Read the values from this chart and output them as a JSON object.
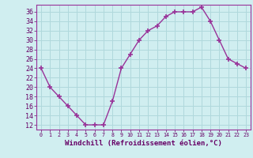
{
  "x": [
    0,
    1,
    2,
    3,
    4,
    5,
    6,
    7,
    8,
    9,
    10,
    11,
    12,
    13,
    14,
    15,
    16,
    17,
    18,
    19,
    20,
    21,
    22,
    23
  ],
  "y": [
    24,
    20,
    18,
    16,
    14,
    12,
    12,
    12,
    17,
    24,
    27,
    30,
    32,
    33,
    35,
    36,
    36,
    36,
    37,
    34,
    30,
    26,
    25,
    24
  ],
  "line_color": "#993399",
  "marker": "+",
  "marker_size": 4,
  "marker_linewidth": 1.2,
  "line_width": 1.0,
  "xlabel": "Windchill (Refroidissement éolien,°C)",
  "xlabel_fontsize": 6.5,
  "ylabel_ticks": [
    12,
    14,
    16,
    18,
    20,
    22,
    24,
    26,
    28,
    30,
    32,
    34,
    36
  ],
  "ytick_fontsize": 6,
  "xtick_fontsize": 4.8,
  "xlim": [
    -0.5,
    23.5
  ],
  "ylim": [
    11,
    37.5
  ],
  "bg_color": "#d0eef0",
  "grid_color": "#b0d8dc",
  "spine_color": "#993399",
  "label_color": "#660066"
}
